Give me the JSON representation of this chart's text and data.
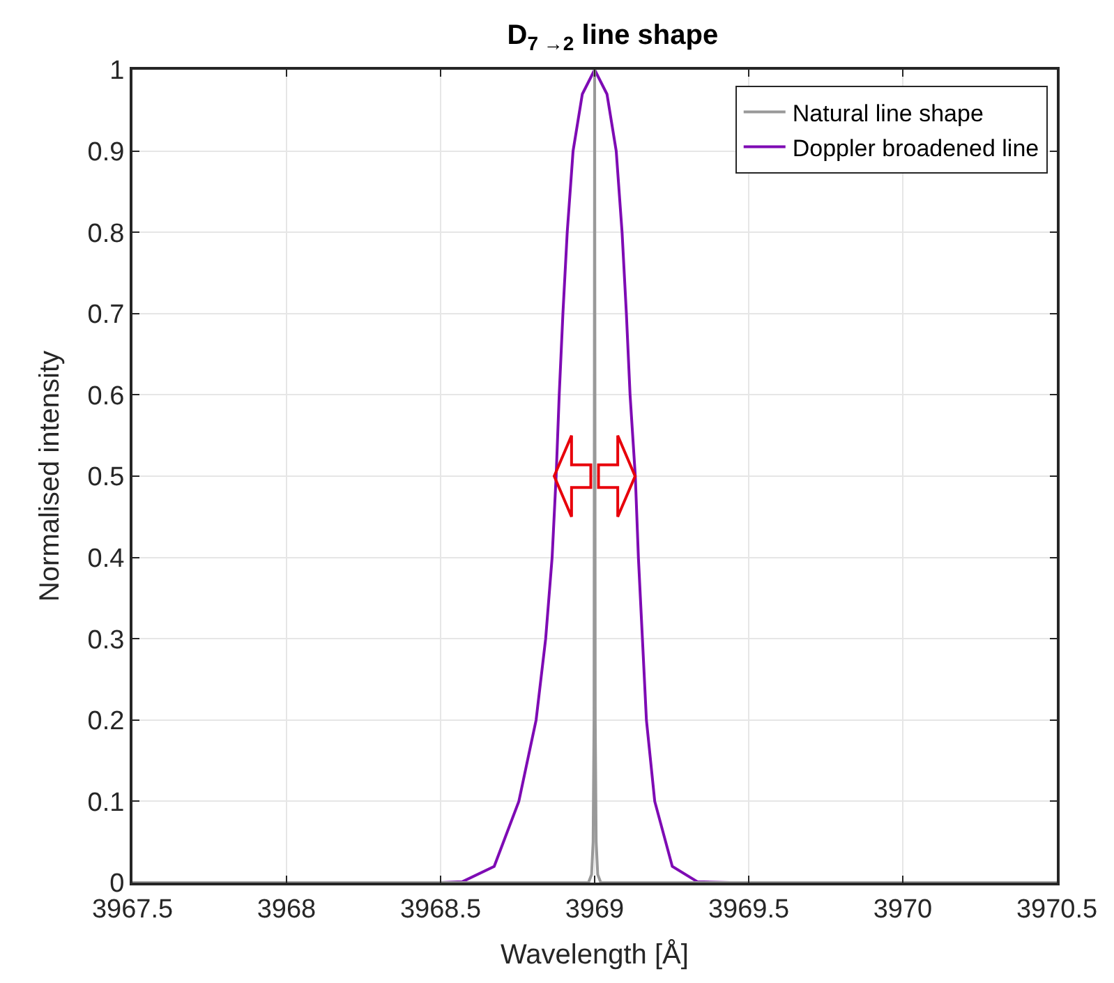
{
  "chart_data": {
    "type": "line",
    "title": "D$_{7 →2}$ line shape",
    "xlabel": "Wavelength [Å]",
    "ylabel": "Normalised intensity",
    "xlim": [
      3967.5,
      3970.5
    ],
    "xticks": [
      3967.5,
      3968,
      3968.5,
      3969,
      3969.5,
      3970,
      3970.5
    ],
    "ylim": [
      0,
      1
    ],
    "yticks": [
      0,
      0.1,
      0.2,
      0.3,
      0.4,
      0.5,
      0.6,
      0.7,
      0.8,
      0.9,
      1
    ],
    "grid": true,
    "legend": "top right",
    "line_style": "solid",
    "marker": "none",
    "series": [
      {
        "name": "Natural line shape",
        "color": "#999999",
        "x": [
          3967.5,
          3968.98,
          3968.99,
          3968.995,
          3968.998,
          3969,
          3969.002,
          3969.005,
          3969.01,
          3969.02,
          3970.5
        ],
        "values": [
          0,
          0,
          0.01,
          0.05,
          0.2,
          1,
          0.2,
          0.05,
          0.01,
          0,
          0
        ]
      },
      {
        "name": "Doppler broadened line",
        "color": "#7e0bb4",
        "x": [
          3967.5,
          3968.5,
          3968.57,
          3968.674,
          3968.754,
          3968.81,
          3968.841,
          3968.862,
          3968.875,
          3968.885,
          3968.897,
          3968.911,
          3968.93,
          3968.96,
          3969,
          3969.04,
          3969.07,
          3969.089,
          3969.103,
          3969.115,
          3969.132,
          3969.142,
          3969.155,
          3969.168,
          3969.195,
          3969.252,
          3969.334,
          3969.44,
          3969.5,
          3970.5
        ],
        "values": [
          0,
          0,
          0.001,
          0.02,
          0.1,
          0.2,
          0.3,
          0.4,
          0.5,
          0.6,
          0.7,
          0.8,
          0.9,
          0.97,
          1,
          0.97,
          0.9,
          0.8,
          0.7,
          0.6,
          0.5,
          0.4,
          0.3,
          0.2,
          0.1,
          0.02,
          0.001,
          0,
          0,
          0
        ]
      }
    ]
  }
}
